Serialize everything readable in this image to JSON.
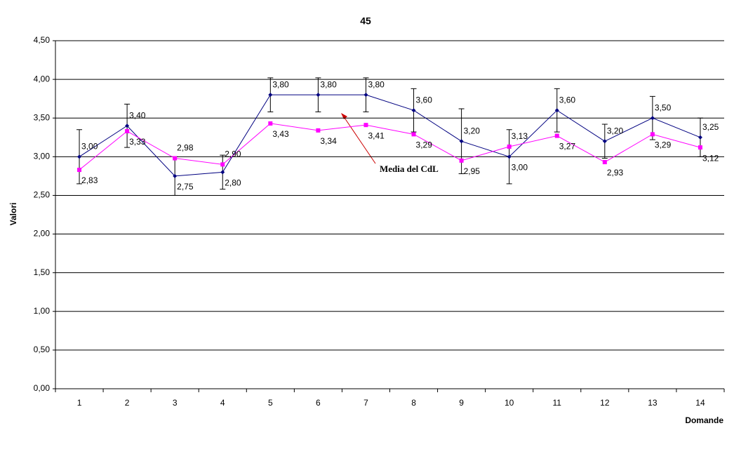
{
  "chart_data": {
    "type": "line",
    "title": "45",
    "y_label": "Valori",
    "x_label": "Domande",
    "annotation": "Media del CdL",
    "categories": [
      "1",
      "2",
      "3",
      "4",
      "5",
      "6",
      "7",
      "8",
      "9",
      "10",
      "11",
      "12",
      "13",
      "14"
    ],
    "ylim": [
      0,
      4.5
    ],
    "yticks": [
      {
        "value": 0,
        "label": "0,00"
      },
      {
        "value": 0.5,
        "label": "0,50"
      },
      {
        "value": 1,
        "label": "1,00"
      },
      {
        "value": 1.5,
        "label": "1,50"
      },
      {
        "value": 2,
        "label": "2,00"
      },
      {
        "value": 2.5,
        "label": "2,50"
      },
      {
        "value": 3,
        "label": "3,00"
      },
      {
        "value": 3.5,
        "label": "3,50"
      },
      {
        "value": 4,
        "label": "4,00"
      },
      {
        "value": 4.5,
        "label": "4,50"
      }
    ],
    "grid": true,
    "series": [
      {
        "color": "#000080",
        "marker": "diamond",
        "values": [
          3.0,
          3.4,
          2.75,
          2.8,
          3.8,
          3.8,
          3.8,
          3.6,
          3.2,
          3.0,
          3.6,
          3.2,
          3.5,
          3.25
        ],
        "value_labels": [
          "3,00",
          "3,40",
          "2,75",
          "2,80",
          "3,80",
          "3,80",
          "3,80",
          "3,60",
          "3,20",
          "3,00",
          "3,60",
          "3,20",
          "3,50",
          "3,25"
        ],
        "errors": [
          0.35,
          0.28,
          0.25,
          0.22,
          0.22,
          0.22,
          0.22,
          0.28,
          0.42,
          0.35,
          0.28,
          0.22,
          0.28,
          0.25
        ]
      },
      {
        "color": "#ff00ff",
        "marker": "square",
        "values": [
          2.83,
          3.33,
          2.98,
          2.9,
          3.43,
          3.34,
          3.41,
          3.29,
          2.95,
          3.13,
          3.27,
          2.93,
          3.29,
          3.12
        ],
        "value_labels": [
          "2,83",
          "3,33",
          "2,98",
          "2,90",
          "3,43",
          "3,34",
          "3,41",
          "3,29",
          "2,95",
          "3,13",
          "3,27",
          "2,93",
          "3,29",
          "3,12"
        ]
      }
    ]
  }
}
